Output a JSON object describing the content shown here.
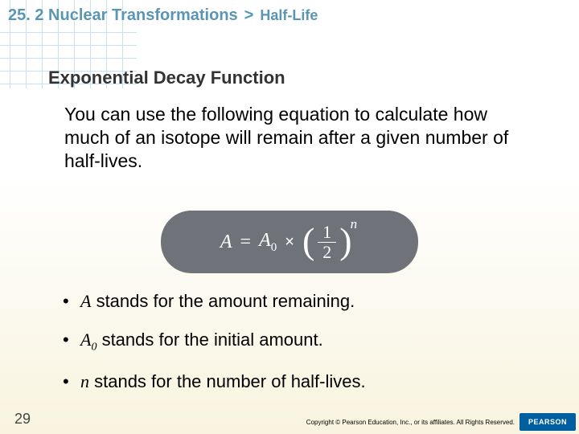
{
  "header": {
    "chapter": "25. 2 Nuclear Transformations",
    "chevron": ">",
    "topic": "Half-Life"
  },
  "section_title": "Exponential Decay Function",
  "body_text": "You can use the following equation to calculate how much of an isotope will remain after a given number of half-lives.",
  "equation": {
    "A_var": "A",
    "equals": "=",
    "A0_var": "A",
    "A0_sub": "0",
    "mult": "×",
    "frac_num": "1",
    "frac_den": "2",
    "exponent": "n"
  },
  "bullets": {
    "b1_var": "A",
    "b1_rest": " stands for the amount remaining.",
    "b2_var": "A",
    "b2_sub": "0",
    "b2_rest": " stands for the initial amount.",
    "b3_var": "n",
    "b3_rest": " stands for the number of half-lives."
  },
  "page_number": "29",
  "copyright": "Copyright © Pearson Education, Inc., or its affiliates. All Rights Reserved.",
  "logo_text": "PEARSON",
  "grid": {
    "color": "#c8e2ee",
    "v_lines": [
      12,
      32,
      52,
      72,
      92,
      112,
      132,
      152
    ],
    "h_lines": [
      40,
      56,
      72,
      88,
      104
    ],
    "line_width": 1,
    "v_height": 110,
    "h_width": 170
  },
  "colors": {
    "header_text": "#5a96b4",
    "section_text": "#333333",
    "body_text": "#000000",
    "equation_bg": "#6f7379",
    "equation_text": "#ffffff",
    "logo_bg": "#005f9e",
    "bg_gradient_top": "#ffffff",
    "bg_gradient_bottom": "#f8f4df"
  },
  "fonts": {
    "body": "Arial, Helvetica, sans-serif",
    "math": "\"Times New Roman\", serif",
    "header_size": 20,
    "section_size": 22,
    "body_size": 23,
    "bullet_size": 22,
    "equation_size": 24
  }
}
